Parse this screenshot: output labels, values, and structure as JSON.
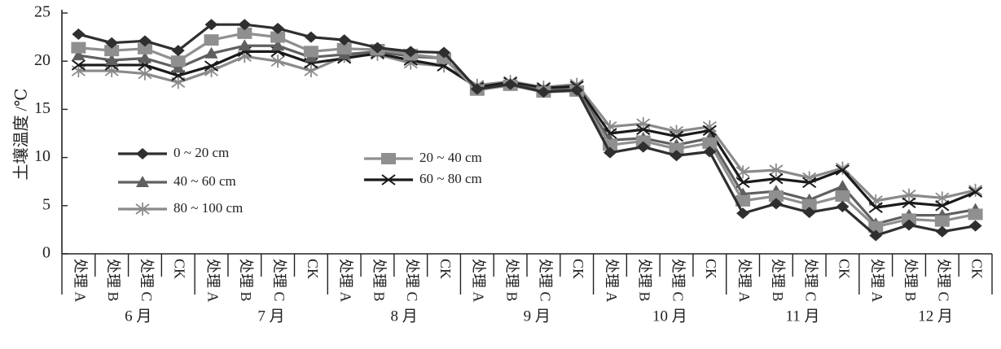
{
  "colors": {
    "axis": "#222222",
    "series": [
      "#2f2f2f",
      "#8f8f8f",
      "#5f5f5f",
      "#1a1a1a",
      "#8a8a8a"
    ]
  },
  "chart_data": {
    "type": "line",
    "title": "",
    "ylabel": "土壤温度 /℃",
    "xlabel": "",
    "ylim": [
      0,
      25
    ],
    "yticks": [
      0,
      5,
      10,
      15,
      20,
      25
    ],
    "grid": false,
    "legend_placement": "center-left, inside plot",
    "categories": [
      "处理 A",
      "处理 B",
      "处理 C",
      "CK",
      "处理 A",
      "处理 B",
      "处理 C",
      "CK",
      "处理 A",
      "处理 B",
      "处理 C",
      "CK",
      "处理 A",
      "处理 B",
      "处理 C",
      "CK",
      "处理 A",
      "处理 B",
      "处理 C",
      "CK",
      "处理 A",
      "处理 B",
      "处理 C",
      "CK",
      "处理 A",
      "处理 B",
      "处理 C",
      "CK"
    ],
    "months": [
      "6 月",
      "7 月",
      "8 月",
      "9 月",
      "10 月",
      "11 月",
      "12 月"
    ],
    "series": [
      {
        "name": "0 ~ 20 cm",
        "marker": "diamond",
        "values": [
          22.8,
          21.9,
          22.1,
          21.1,
          23.8,
          23.8,
          23.4,
          22.5,
          22.2,
          21.4,
          21.0,
          20.9,
          17.1,
          17.6,
          16.8,
          17.0,
          10.5,
          11.1,
          10.2,
          10.6,
          4.2,
          5.2,
          4.3,
          4.9,
          1.9,
          3.0,
          2.3,
          2.9
        ]
      },
      {
        "name": "20 ~ 40 cm",
        "marker": "square",
        "values": [
          21.4,
          21.1,
          21.3,
          20.0,
          22.2,
          22.9,
          22.5,
          21.0,
          21.3,
          21.2,
          20.7,
          20.3,
          17.0,
          17.5,
          16.8,
          16.9,
          11.3,
          11.7,
          10.9,
          11.5,
          5.5,
          6.0,
          5.1,
          6.0,
          2.8,
          3.6,
          3.4,
          4.1
        ]
      },
      {
        "name": "40 ~ 60 cm",
        "marker": "triangle",
        "values": [
          20.6,
          20.1,
          20.3,
          19.3,
          20.8,
          21.6,
          21.6,
          20.4,
          20.7,
          21.0,
          20.5,
          20.3,
          17.1,
          17.6,
          17.0,
          17.1,
          11.8,
          12.0,
          11.3,
          12.0,
          6.2,
          6.5,
          5.6,
          7.0,
          3.1,
          4.0,
          4.0,
          4.6
        ]
      },
      {
        "name": "60 ~ 80 cm",
        "marker": "x",
        "values": [
          19.6,
          19.6,
          19.6,
          18.5,
          19.5,
          21.0,
          21.0,
          19.8,
          20.3,
          20.8,
          20.1,
          19.5,
          17.3,
          17.8,
          17.2,
          17.4,
          12.5,
          12.9,
          12.2,
          12.8,
          7.4,
          7.8,
          7.4,
          8.7,
          4.8,
          5.3,
          5.0,
          6.4
        ]
      },
      {
        "name": "80 ~ 100 cm",
        "marker": "star",
        "values": [
          19.0,
          19.0,
          18.7,
          17.8,
          19.0,
          20.5,
          20.0,
          19.0,
          20.5,
          20.7,
          19.8,
          19.5,
          17.5,
          17.9,
          17.3,
          17.6,
          13.2,
          13.5,
          12.7,
          13.2,
          8.5,
          8.7,
          7.9,
          8.9,
          5.5,
          6.1,
          5.8,
          6.6
        ]
      }
    ]
  }
}
